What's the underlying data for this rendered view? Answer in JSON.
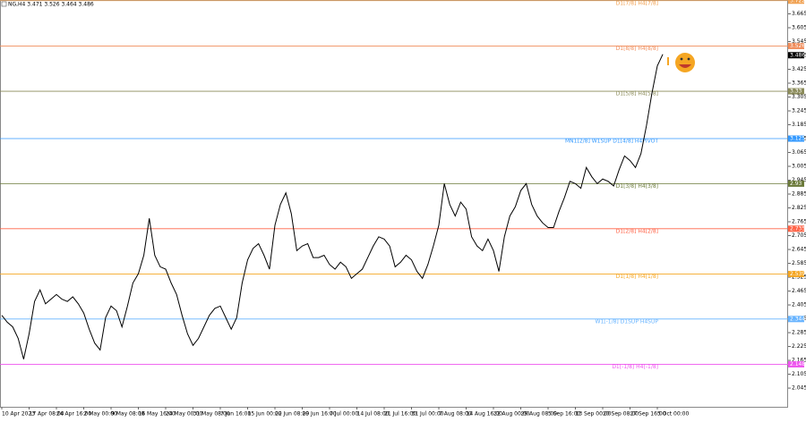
{
  "chart_data": {
    "type": "line",
    "title": "NG,H4 3.471 3.526 3.464 3.486",
    "categories": [
      "10 Apr 2023",
      null,
      null,
      null,
      null,
      "17 Apr 08:00",
      null,
      null,
      null,
      null,
      "24 Apr 16:00",
      null,
      null,
      null,
      null,
      "2 May 00:00",
      null,
      null,
      null,
      null,
      "9 May 08:00",
      null,
      null,
      null,
      null,
      "16 May 16:00",
      null,
      null,
      null,
      null,
      "24 May 00:00",
      null,
      null,
      null,
      null,
      "31 May 08:00",
      null,
      null,
      null,
      null,
      "7 Jun 16:00",
      null,
      null,
      null,
      null,
      "15 Jun 00:00",
      null,
      null,
      null,
      null,
      "22 Jun 08:00",
      null,
      null,
      null,
      null,
      "29 Jun 16:00",
      null,
      null,
      null,
      null,
      "7 Jul 00:00",
      null,
      null,
      null,
      null,
      "14 Jul 08:00",
      null,
      null,
      null,
      null,
      "21 Jul 16:00",
      null,
      null,
      null,
      null,
      "31 Jul 00:00",
      null,
      null,
      null,
      null,
      "7 Aug 08:00",
      null,
      null,
      null,
      null,
      "14 Aug 16:00",
      null,
      null,
      null,
      null,
      "22 Aug 00:00",
      null,
      null,
      null,
      null,
      "29 Aug 08:00",
      null,
      null,
      null,
      null,
      "5 Sep 16:00",
      null,
      null,
      null,
      null,
      "13 Sep 00:00",
      null,
      null,
      null,
      null,
      "20 Sep 08:00",
      null,
      null,
      null,
      null,
      "27 Sep 16:00",
      null,
      null,
      null,
      null,
      "5 Oct 00:00",
      null
    ],
    "series": [
      {
        "name": "NG,H4",
        "color": "#000000",
        "values": [
          2.36,
          2.33,
          2.31,
          2.26,
          2.17,
          2.28,
          2.42,
          2.47,
          2.41,
          2.43,
          2.45,
          2.43,
          2.42,
          2.44,
          2.41,
          2.37,
          2.3,
          2.24,
          2.21,
          2.35,
          2.4,
          2.38,
          2.31,
          2.4,
          2.5,
          2.54,
          2.62,
          2.78,
          2.62,
          2.57,
          2.56,
          2.5,
          2.45,
          2.36,
          2.28,
          2.23,
          2.26,
          2.31,
          2.36,
          2.39,
          2.4,
          2.35,
          2.3,
          2.35,
          2.5,
          2.6,
          2.65,
          2.67,
          2.62,
          2.56,
          2.75,
          2.84,
          2.89,
          2.8,
          2.64,
          2.66,
          2.67,
          2.61,
          2.61,
          2.62,
          2.58,
          2.56,
          2.59,
          2.57,
          2.52,
          2.54,
          2.56,
          2.61,
          2.66,
          2.7,
          2.69,
          2.66,
          2.57,
          2.59,
          2.62,
          2.6,
          2.55,
          2.52,
          2.58,
          2.66,
          2.75,
          2.93,
          2.84,
          2.79,
          2.85,
          2.82,
          2.7,
          2.66,
          2.64,
          2.69,
          2.64,
          2.55,
          2.7,
          2.79,
          2.83,
          2.9,
          2.93,
          2.84,
          2.79,
          2.76,
          2.74,
          2.74,
          2.81,
          2.87,
          2.94,
          2.93,
          2.91,
          3.0,
          2.96,
          2.93,
          2.95,
          2.94,
          2.92,
          2.99,
          3.05,
          3.03,
          3.0,
          3.06,
          3.18,
          3.32,
          3.44,
          3.49
        ]
      }
    ],
    "ylim": [
      1.964,
      3.725
    ],
    "yticks": [
      2.045,
      2.105,
      2.165,
      2.225,
      2.285,
      2.345,
      2.405,
      2.465,
      2.525,
      2.585,
      2.645,
      2.705,
      2.765,
      2.825,
      2.885,
      2.945,
      3.005,
      3.065,
      3.125,
      3.185,
      3.245,
      3.305,
      3.365,
      3.425,
      3.485,
      3.545,
      3.605,
      3.665
    ],
    "current_price": 3.486,
    "levels": [
      {
        "label": "D1[7/8] H4[7/8]",
        "value": 3.722,
        "color": "#f0a050"
      },
      {
        "label": "D1[8/8] H4[8/8]",
        "value": 3.526,
        "color": "#f08c5a"
      },
      {
        "label": "D1[5/8] H4[5/8]",
        "value": 3.33,
        "color": "#8b8b5a"
      },
      {
        "label": "MN1[2/8] W1SUP D1[4/8] H4PIVOT",
        "value": 3.125,
        "color": "#3399ff"
      },
      {
        "label": "D1[3/8] H4[3/8]",
        "value": 2.93,
        "color": "#6b7a3a"
      },
      {
        "label": "D1[2/8] H4[2/8]",
        "value": 2.735,
        "color": "#ff6347"
      },
      {
        "label": "D1[1/8] H4[1/8]",
        "value": 2.539,
        "color": "#f5a623"
      },
      {
        "label": "W1[-1/8] D1SUP H4SUP",
        "value": 2.344,
        "color": "#66b3ff"
      },
      {
        "label": "D1[-1/8] H4[-1/8]",
        "value": 2.148,
        "color": "#ee55ee"
      }
    ]
  }
}
